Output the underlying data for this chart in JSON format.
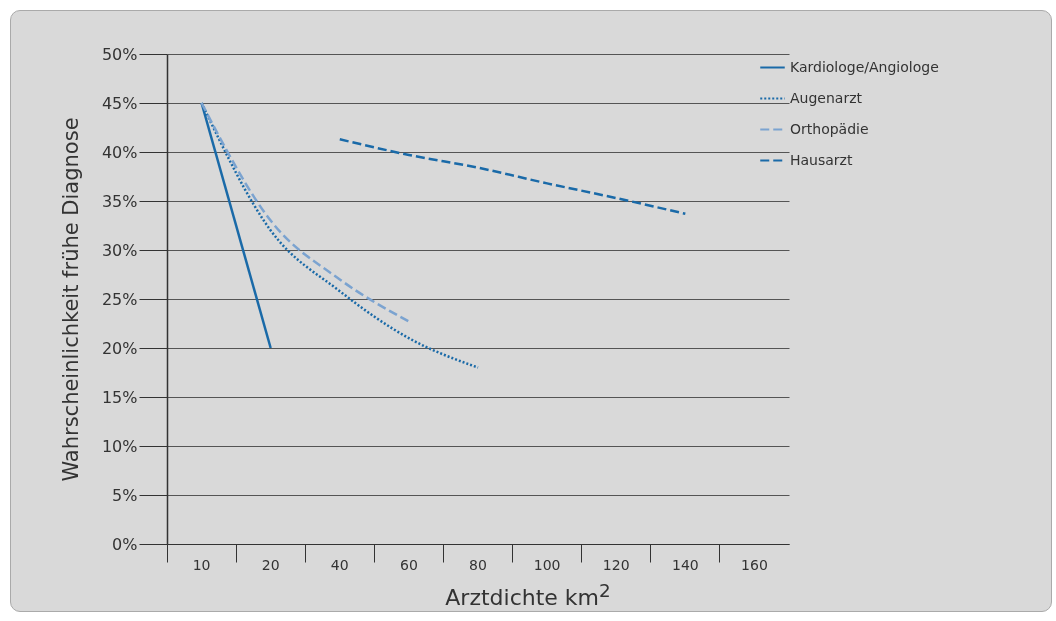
{
  "chart_data": {
    "type": "line",
    "xlabel": "Arztdichte km$^{2}$",
    "ylabel": "Wahrscheinlichkeit frühe Diagnose",
    "categories": [
      "10",
      "20",
      "40",
      "60",
      "80",
      "100",
      "120",
      "140",
      "160"
    ],
    "series": [
      {
        "name": "Kardiologe/Angiologe",
        "color": "#1a6aa8",
        "line_style": "solid",
        "values": [
          45,
          20,
          null,
          null,
          null,
          null,
          null,
          null,
          null
        ]
      },
      {
        "name": "Augenarzt",
        "color": "#1a6aa8",
        "line_style": "dotted",
        "values": [
          45,
          32,
          25.8,
          21,
          18,
          null,
          null,
          null,
          null
        ]
      },
      {
        "name": "Orthopädie",
        "color": "#7ba3d0",
        "line_style": "dashed",
        "values": [
          45,
          33,
          27,
          22.7,
          null,
          null,
          null,
          null,
          null
        ]
      },
      {
        "name": "Hausarzt",
        "color": "#1a6aa8",
        "line_style": "dashed",
        "values": [
          null,
          null,
          41.3,
          39.7,
          38.4,
          36.8,
          35.3,
          33.7,
          null
        ]
      }
    ],
    "ylim": [
      0,
      50
    ],
    "yticks": [
      {
        "value": 0,
        "label": "0%"
      },
      {
        "value": 5,
        "label": "5%"
      },
      {
        "value": 10,
        "label": "10%"
      },
      {
        "value": 15,
        "label": "15%"
      },
      {
        "value": 20,
        "label": "20%"
      },
      {
        "value": 25,
        "label": "25%"
      },
      {
        "value": 30,
        "label": "30%"
      },
      {
        "value": 35,
        "label": "35%"
      },
      {
        "value": 40,
        "label": "40%"
      },
      {
        "value": 45,
        "label": "45%"
      },
      {
        "value": 50,
        "label": "50%"
      }
    ],
    "grid": "y",
    "legend": "right",
    "marker": "none"
  }
}
